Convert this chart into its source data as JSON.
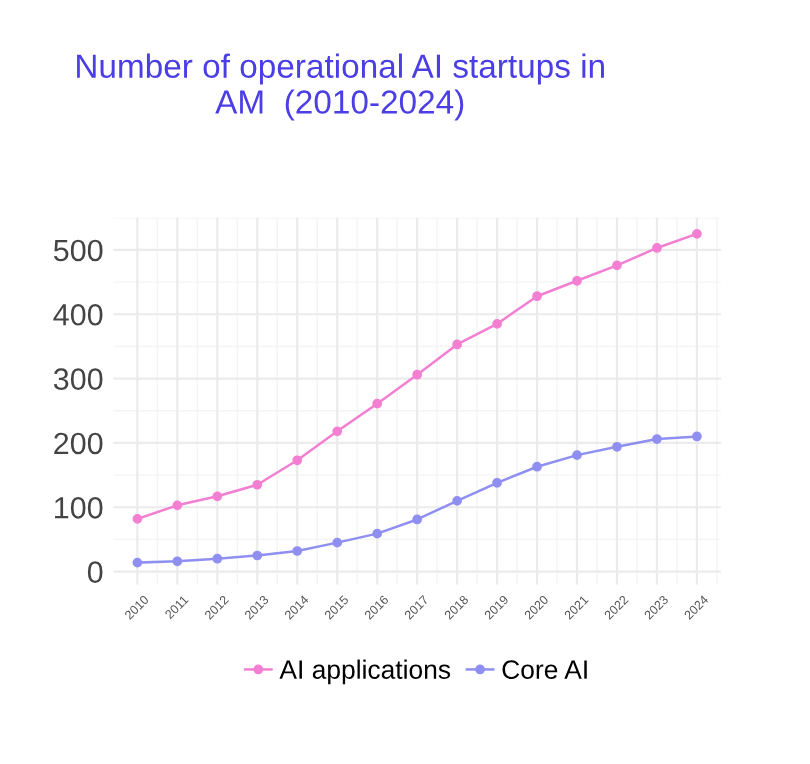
{
  "chart_data": {
    "type": "line",
    "title": "Number of operational AI startups in\nAM  (2010-2024)",
    "categories": [
      "2010",
      "2011",
      "2012",
      "2013",
      "2014",
      "2015",
      "2016",
      "2017",
      "2018",
      "2019",
      "2020",
      "2021",
      "2022",
      "2023",
      "2024"
    ],
    "series": [
      {
        "name": "AI applications",
        "color": "#f27fd2",
        "values": [
          82,
          103,
          117,
          135,
          173,
          218,
          261,
          306,
          353,
          385,
          428,
          452,
          476,
          503,
          525
        ]
      },
      {
        "name": "Core AI",
        "color": "#8f8ff2",
        "values": [
          14,
          16,
          20,
          25,
          32,
          45,
          59,
          81,
          110,
          138,
          163,
          181,
          194,
          206,
          210
        ]
      }
    ],
    "ylim": [
      -20,
      550
    ],
    "yticks": [
      0,
      100,
      200,
      300,
      400,
      500
    ],
    "grid": true,
    "legend": "bottom",
    "marker": "circle",
    "line_style": "solid"
  }
}
